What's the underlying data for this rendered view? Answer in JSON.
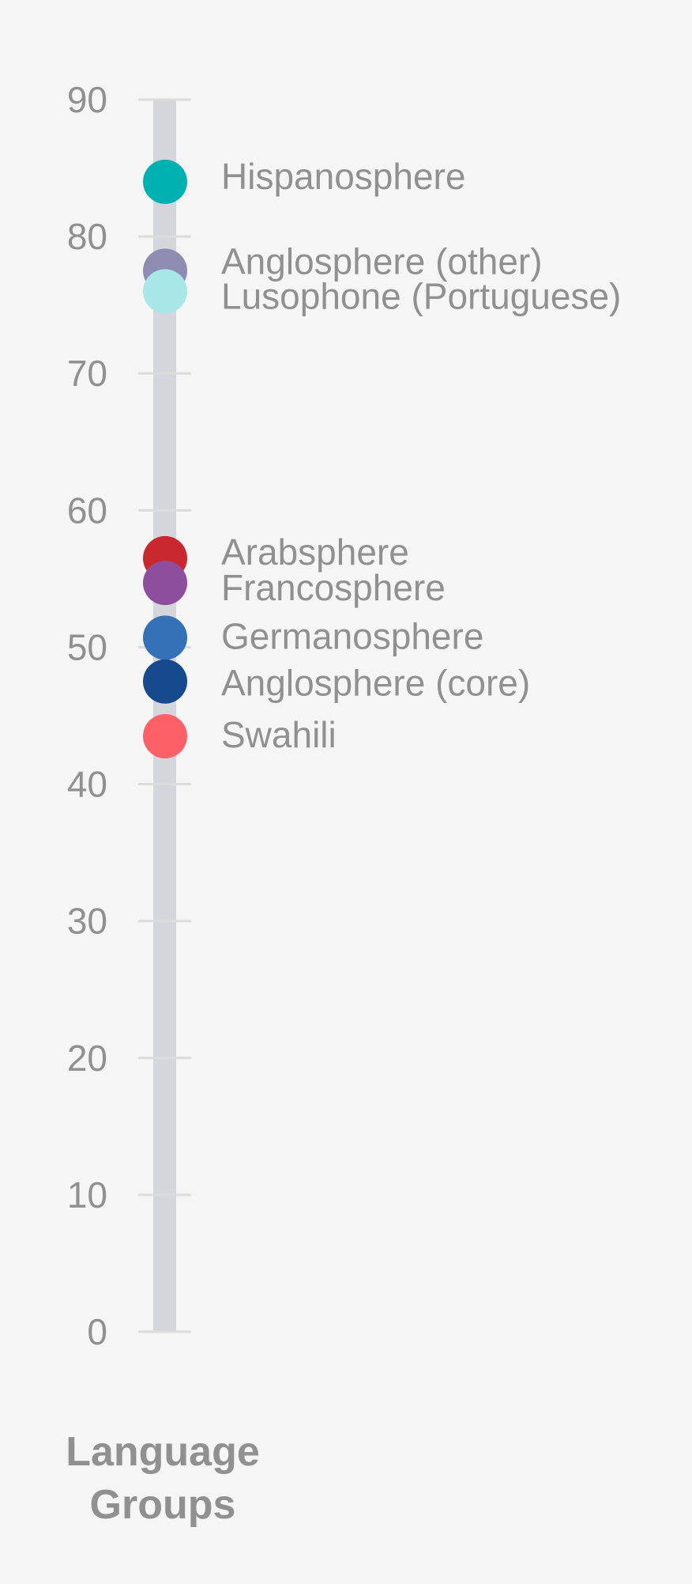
{
  "chart_data": {
    "type": "scatter",
    "orientation": "vertical-strip",
    "category": [
      "Language",
      "Groups"
    ],
    "ylim": [
      0,
      90
    ],
    "yticks": [
      "0",
      "10",
      "20",
      "30",
      "40",
      "50",
      "60",
      "70",
      "80",
      "90"
    ],
    "grid": false,
    "points": [
      {
        "label": "Hispanosphere",
        "value": 84.0,
        "color": "#00b1b1"
      },
      {
        "label": "Anglosphere (other)",
        "value": 77.5,
        "color": "#8e8cb2"
      },
      {
        "label": "Lusophone (Portuguese)",
        "value": 76.0,
        "color": "#a8e6e8"
      },
      {
        "label": "Arabsphere",
        "value": 56.5,
        "color": "#c9282f"
      },
      {
        "label": "Francosphere",
        "value": 54.7,
        "color": "#8e4e9e"
      },
      {
        "label": "Germanosphere",
        "value": 50.7,
        "color": "#3571b7"
      },
      {
        "label": "Anglosphere (core)",
        "value": 47.5,
        "color": "#174a8c"
      },
      {
        "label": "Swahili",
        "value": 43.5,
        "color": "#fe6067"
      }
    ]
  }
}
